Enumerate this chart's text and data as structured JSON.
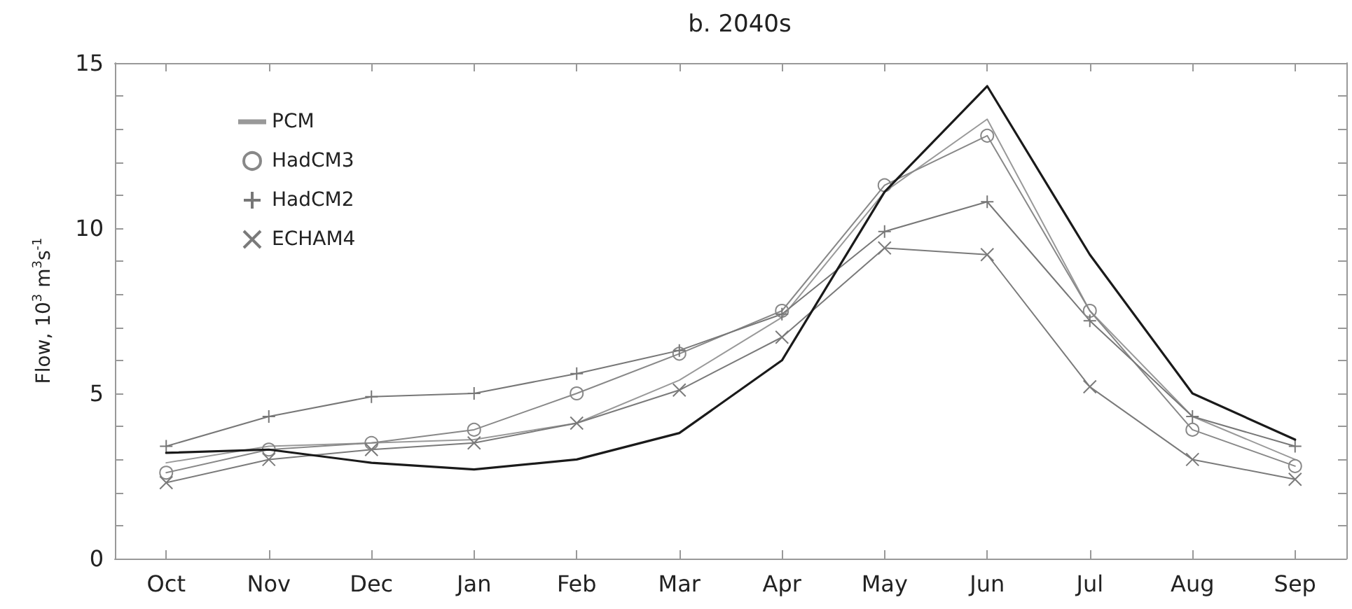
{
  "chart_data": {
    "type": "line",
    "title": "b. 2040s",
    "ylabel": "Flow, 10$^{3}$ m$^{3}$s$^{-1}$",
    "categories": [
      "Oct",
      "Nov",
      "Dec",
      "Jan",
      "Feb",
      "Mar",
      "Apr",
      "May",
      "Jun",
      "Jul",
      "Aug",
      "Sep"
    ],
    "series": [
      {
        "color": "#1a1a1a",
        "marker": "none",
        "values": [
          3.2,
          3.3,
          2.9,
          2.7,
          3.0,
          3.8,
          6.0,
          11.1,
          14.3,
          9.2,
          5.0,
          3.6
        ]
      },
      {
        "name": "PCM",
        "color": "#999999",
        "marker": "none",
        "values": [
          2.9,
          3.4,
          3.5,
          3.6,
          4.1,
          5.4,
          7.3,
          11.1,
          13.3,
          7.5,
          4.3,
          3.0
        ]
      },
      {
        "name": "HadCM3",
        "color": "#888888",
        "marker": "circle",
        "values": [
          2.6,
          3.3,
          3.5,
          3.9,
          5.0,
          6.2,
          7.5,
          11.3,
          12.8,
          7.5,
          3.9,
          2.8
        ]
      },
      {
        "name": "HadCM2",
        "color": "#777777",
        "marker": "cross",
        "values": [
          3.4,
          4.3,
          4.9,
          5.0,
          5.6,
          6.3,
          7.4,
          9.9,
          10.8,
          7.2,
          4.3,
          3.4
        ]
      },
      {
        "name": "ECHAM4",
        "color": "#7a7a7a",
        "marker": "x",
        "values": [
          2.3,
          3.0,
          3.3,
          3.5,
          4.1,
          5.1,
          6.7,
          9.4,
          9.2,
          5.2,
          3.0,
          2.4
        ]
      }
    ],
    "ylim": [
      0,
      15
    ],
    "yticks": [
      0,
      {
        "value": 1,
        "label": null
      },
      {
        "value": 2,
        "label": null
      },
      {
        "value": 3,
        "label": null
      },
      {
        "value": 4,
        "label": null
      },
      5,
      {
        "value": 6,
        "label": null
      },
      {
        "value": 7,
        "label": null
      },
      {
        "value": 8,
        "label": null
      },
      {
        "value": 9,
        "label": null
      },
      10,
      {
        "value": 11,
        "label": null
      },
      {
        "value": 12,
        "label": null
      },
      {
        "value": 13,
        "label": null
      },
      {
        "value": 14,
        "label": null
      },
      15
    ],
    "grid": false,
    "legend": "top left",
    "line_style": "solid"
  }
}
